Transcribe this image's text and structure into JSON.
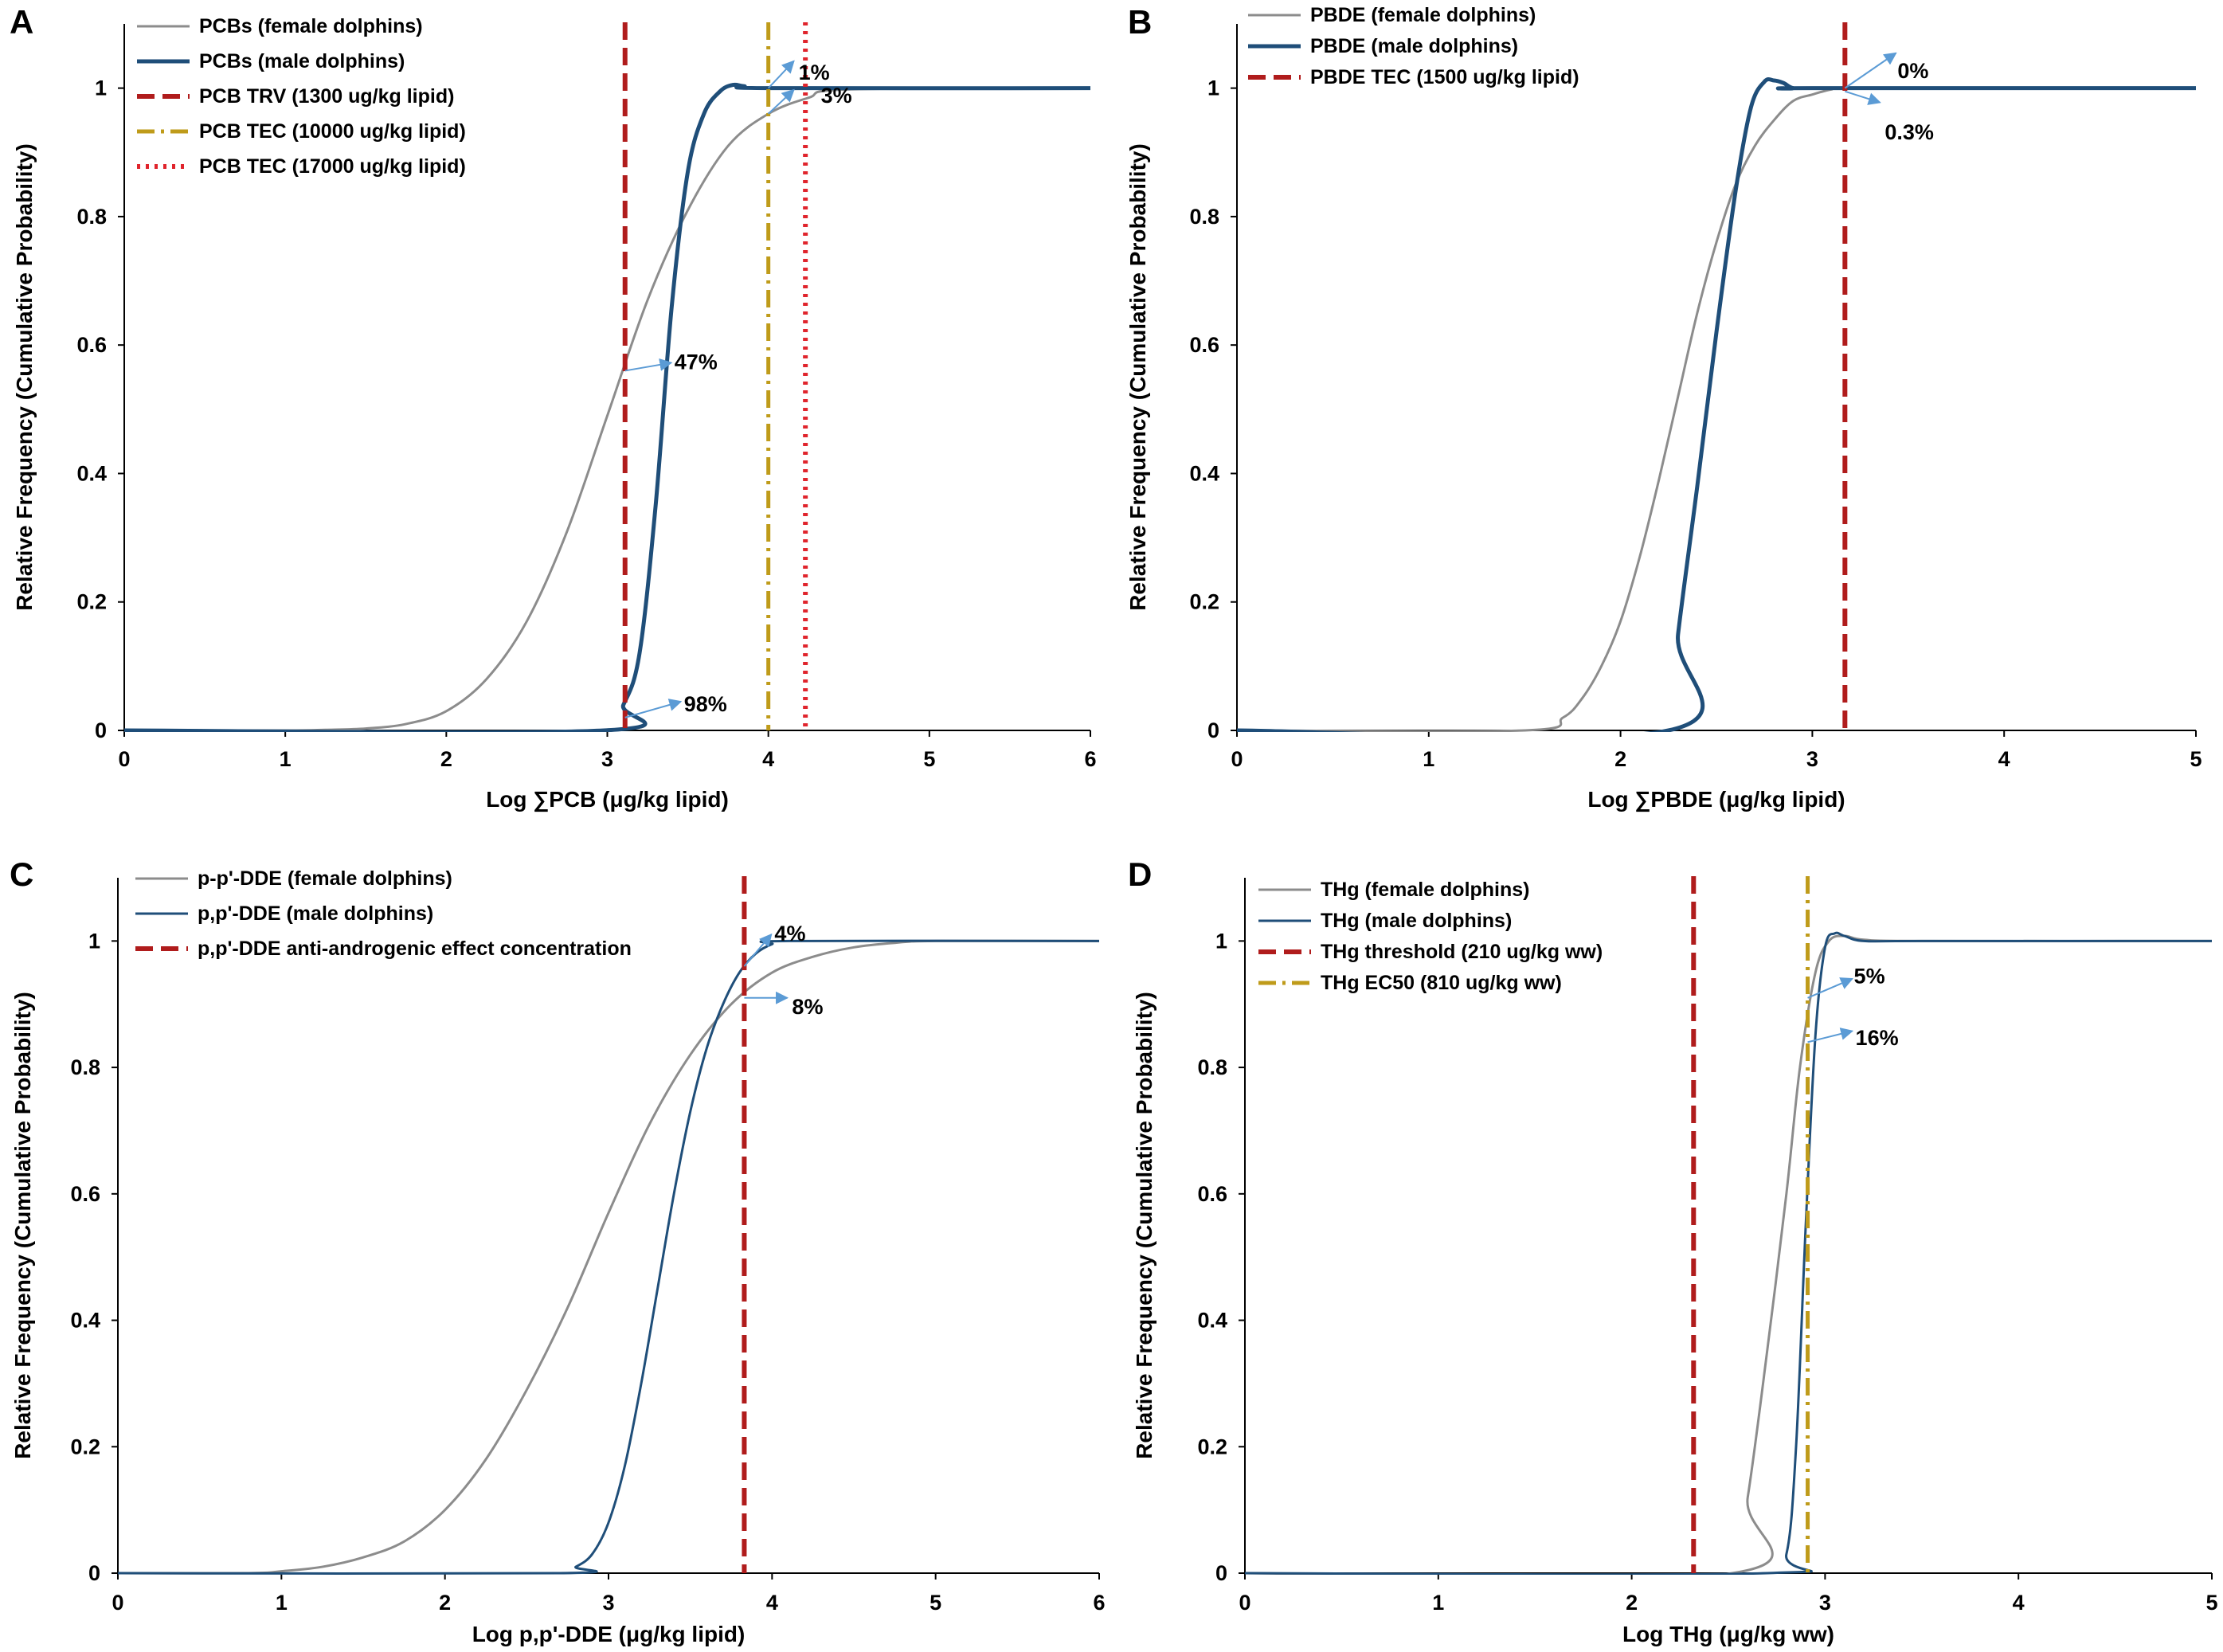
{
  "chart_data": [
    {
      "panel": "A",
      "type": "line",
      "xlabel": "Log ∑PCB (μg/kg lipid)",
      "ylabel": "Relative Frequency (Cumulative Probability)",
      "xlim": [
        0,
        6
      ],
      "ylim": [
        0,
        1.1
      ],
      "xticks": [
        "0",
        "1",
        "2",
        "3",
        "4",
        "5",
        "6"
      ],
      "yticks": [
        "0",
        "0.2",
        "0.4",
        "0.6",
        "0.8",
        "1"
      ],
      "series": [
        {
          "name": "PCBs (female dolphins)",
          "style": "thin",
          "color": "#8c8c8c",
          "x": [
            0,
            1,
            1.25,
            1.5,
            1.75,
            2,
            2.25,
            2.5,
            2.75,
            3,
            3.25,
            3.5,
            3.75,
            4,
            4.25,
            4.5,
            6
          ],
          "y": [
            0,
            0,
            0.001,
            0.003,
            0.01,
            0.03,
            0.08,
            0.17,
            0.31,
            0.49,
            0.67,
            0.81,
            0.91,
            0.96,
            0.985,
            0.998,
            1
          ]
        },
        {
          "name": "PCBs (male dolphins)",
          "style": "thick",
          "color": "#1f4e79",
          "x": [
            0,
            2.98,
            3.1,
            3.2,
            3.3,
            3.4,
            3.5,
            3.6,
            3.7,
            3.78,
            3.85,
            4,
            6
          ],
          "y": [
            0,
            0,
            0.04,
            0.12,
            0.35,
            0.66,
            0.87,
            0.96,
            0.995,
            1.005,
            1.003,
            1,
            1
          ]
        }
      ],
      "vlines": [
        {
          "name": "PCB TRV (1300 ug/kg lipid)",
          "x": 3.11,
          "style": "dashed",
          "color": "#b01c1c"
        },
        {
          "name": "PCB TEC (10000 ug/kg lipid)",
          "x": 4.0,
          "style": "dashdot",
          "color": "#bf9b1a"
        },
        {
          "name": "PCB TEC (17000 ug/kg lipid)",
          "x": 4.23,
          "style": "dotted",
          "color": "#e0242c"
        }
      ],
      "annotations": [
        {
          "text": "1%",
          "x": 4.0,
          "y": 1.0
        },
        {
          "text": "3%",
          "x": 4.0,
          "y": 0.96
        },
        {
          "text": "47%",
          "x": 3.11,
          "y": 0.56
        },
        {
          "text": "98%",
          "x": 3.11,
          "y": 0.02
        }
      ]
    },
    {
      "panel": "B",
      "type": "line",
      "xlabel": "Log ∑PBDE (μg/kg lipid)",
      "ylabel": "Relative Frequency (Cumulative Probability)",
      "xlim": [
        0,
        5
      ],
      "ylim": [
        0,
        1.1
      ],
      "xticks": [
        "0",
        "1",
        "2",
        "3",
        "4",
        "5"
      ],
      "yticks": [
        "0",
        "0.2",
        "0.4",
        "0.6",
        "0.8",
        "1"
      ],
      "series": [
        {
          "name": "PBDE (female dolphins)",
          "style": "thin",
          "color": "#8c8c8c",
          "x": [
            0,
            1.5,
            1.7,
            1.8,
            1.9,
            2.0,
            2.1,
            2.2,
            2.3,
            2.4,
            2.5,
            2.6,
            2.7,
            2.8,
            2.9,
            3.0,
            3.1,
            3.2,
            5
          ],
          "y": [
            0,
            0,
            0.02,
            0.05,
            0.1,
            0.17,
            0.27,
            0.39,
            0.52,
            0.65,
            0.76,
            0.85,
            0.91,
            0.95,
            0.98,
            0.99,
            0.998,
            1,
            1
          ]
        },
        {
          "name": "PBDE (male dolphins)",
          "style": "thick",
          "color": "#1f4e79",
          "x": [
            0,
            2.25,
            2.3,
            2.4,
            2.5,
            2.6,
            2.68,
            2.75,
            2.8,
            2.85,
            2.9,
            3.0,
            5
          ],
          "y": [
            0,
            0,
            0.15,
            0.38,
            0.62,
            0.84,
            0.97,
            1.01,
            1.012,
            1.008,
            1.0,
            1.0,
            1.0
          ]
        }
      ],
      "vlines": [
        {
          "name": "PBDE TEC (1500 ug/kg lipid)",
          "x": 3.17,
          "style": "dashed",
          "color": "#b01c1c"
        }
      ],
      "annotations": [
        {
          "text": "0%",
          "x": 3.17,
          "y": 1.0
        },
        {
          "text": "0.3%",
          "x": 3.17,
          "y": 0.995
        }
      ]
    },
    {
      "panel": "C",
      "type": "line",
      "xlabel": "Log p,p'-DDE (μg/kg lipid)",
      "ylabel": "Relative Frequency (Cumulative Probability)",
      "xlim": [
        0,
        6
      ],
      "ylim": [
        0,
        1.1
      ],
      "xticks": [
        "0",
        "1",
        "2",
        "3",
        "4",
        "5",
        "6"
      ],
      "yticks": [
        "0",
        "0.2",
        "0.4",
        "0.6",
        "0.8",
        "1"
      ],
      "series": [
        {
          "name": "p-p'-DDE (female dolphins)",
          "style": "thin",
          "color": "#8c8c8c",
          "x": [
            0,
            0.8,
            1.0,
            1.25,
            1.5,
            1.75,
            2,
            2.25,
            2.5,
            2.75,
            3,
            3.25,
            3.5,
            3.75,
            4,
            4.25,
            4.5,
            4.75,
            5,
            6
          ],
          "y": [
            0,
            0,
            0.003,
            0.01,
            0.025,
            0.05,
            0.1,
            0.18,
            0.29,
            0.42,
            0.57,
            0.71,
            0.82,
            0.9,
            0.95,
            0.975,
            0.99,
            0.997,
            1,
            1
          ]
        },
        {
          "name": "p,p'-DDE (male dolphins)",
          "style": "thin",
          "color": "#1f4e79",
          "x": [
            0,
            2.7,
            2.8,
            2.9,
            3.0,
            3.1,
            3.2,
            3.3,
            3.4,
            3.5,
            3.6,
            3.7,
            3.8,
            3.9,
            4.0,
            4.1,
            6
          ],
          "y": [
            0,
            0,
            0.01,
            0.03,
            0.08,
            0.17,
            0.3,
            0.45,
            0.6,
            0.73,
            0.83,
            0.9,
            0.95,
            0.98,
            0.995,
            1,
            1
          ]
        }
      ],
      "vlines": [
        {
          "name": "p,p'-DDE anti-androgenic effect concentration",
          "x": 3.83,
          "style": "dashed",
          "color": "#b01c1c"
        }
      ],
      "annotations": [
        {
          "text": "4%",
          "x": 3.83,
          "y": 0.96
        },
        {
          "text": "8%",
          "x": 3.83,
          "y": 0.91
        }
      ]
    },
    {
      "panel": "D",
      "type": "line",
      "xlabel": "Log THg (μg/kg ww)",
      "ylabel": "Relative Frequency (Cumulative Probability)",
      "xlim": [
        0,
        5
      ],
      "ylim": [
        0,
        1.1
      ],
      "xticks": [
        "0",
        "1",
        "2",
        "3",
        "4",
        "5"
      ],
      "yticks": [
        "0",
        "0.2",
        "0.4",
        "0.6",
        "0.8",
        "1"
      ],
      "series": [
        {
          "name": "THg (female dolphins)",
          "style": "thin",
          "color": "#8c8c8c",
          "x": [
            0,
            2.52,
            2.6,
            2.7,
            2.8,
            2.87,
            2.95,
            3.02,
            3.1,
            3.2,
            3.5,
            5
          ],
          "y": [
            0,
            0,
            0.12,
            0.35,
            0.6,
            0.8,
            0.95,
            1.0,
            1.008,
            1.002,
            1.0,
            1.0
          ]
        },
        {
          "name": "THg (male dolphins)",
          "style": "thin",
          "color": "#1f4e79",
          "x": [
            0,
            2.7,
            2.8,
            2.85,
            2.9,
            2.95,
            3.0,
            3.05,
            3.1,
            3.2,
            3.5,
            5
          ],
          "y": [
            0,
            0,
            0.03,
            0.2,
            0.55,
            0.85,
            0.99,
            1.012,
            1.008,
            1.0,
            1.0,
            1.0
          ]
        }
      ],
      "vlines": [
        {
          "name": "THg threshold (210 ug/kg ww)",
          "x": 2.32,
          "style": "dashed",
          "color": "#b01c1c"
        },
        {
          "name": "THg EC50 (810 ug/kg ww)",
          "x": 2.91,
          "style": "dashdot",
          "color": "#bf9b1a"
        }
      ],
      "annotations": [
        {
          "text": "5%",
          "x": 2.91,
          "y": 0.91
        },
        {
          "text": "16%",
          "x": 2.91,
          "y": 0.84
        }
      ]
    }
  ],
  "colors": {
    "female": "#8c8c8c",
    "male": "#1f4e79",
    "arrow": "#5b9bd5"
  }
}
